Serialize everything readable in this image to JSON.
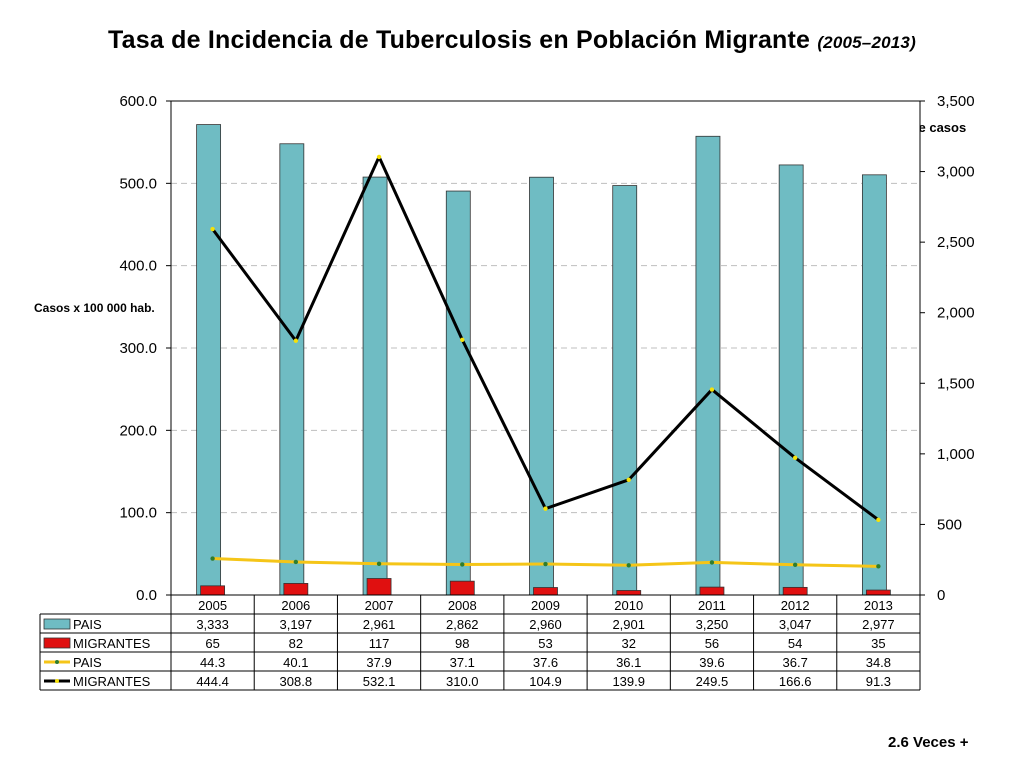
{
  "title": "Tasa de Incidencia de Tuberculosis en Población Migrante",
  "subtitle": "(2005–2013)",
  "note": "2.6 Veces +",
  "colors": {
    "pais_bar": "#6fbcc3",
    "migrantes_bar": "#e01010",
    "pais_line": "#f5c518",
    "migrantes_line": "#000000",
    "grid": "#bfbfbf"
  },
  "chart_data": {
    "type": "bar",
    "categories": [
      "2005",
      "2006",
      "2007",
      "2008",
      "2009",
      "2010",
      "2011",
      "2012",
      "2013"
    ],
    "ylabel": "Casos x 100 000 hab.",
    "ylabel_right": "No. de casos",
    "ylim": [
      0,
      600
    ],
    "ylim_right": [
      0,
      3500
    ],
    "yticks_left": [
      "0.0",
      "100.0",
      "200.0",
      "300.0",
      "400.0",
      "500.0",
      "600.0"
    ],
    "yticks_right": [
      "0",
      "500",
      "1,000",
      "1,500",
      "2,000",
      "2,500",
      "3,000",
      "3,500"
    ],
    "grid": true,
    "legend": "data table",
    "series": [
      {
        "name": "PAIS",
        "kind": "bar",
        "axis": "right",
        "color_key": "pais_bar",
        "values": [
          3333,
          3197,
          2961,
          2862,
          2960,
          2901,
          3250,
          3047,
          2977
        ],
        "labels": [
          "3,333",
          "3,197",
          "2,961",
          "2,862",
          "2,960",
          "2,901",
          "3,250",
          "3,047",
          "2,977"
        ]
      },
      {
        "name": "MIGRANTES",
        "kind": "bar",
        "axis": "right",
        "color_key": "migrantes_bar",
        "values": [
          65,
          82,
          117,
          98,
          53,
          32,
          56,
          54,
          35
        ],
        "labels": [
          "65",
          "82",
          "117",
          "98",
          "53",
          "32",
          "56",
          "54",
          "35"
        ]
      },
      {
        "name": "PAIS",
        "kind": "line",
        "axis": "left",
        "color_key": "pais_line",
        "values": [
          44.3,
          40.1,
          37.9,
          37.1,
          37.6,
          36.1,
          39.6,
          36.7,
          34.8
        ],
        "labels": [
          "44.3",
          "40.1",
          "37.9",
          "37.1",
          "37.6",
          "36.1",
          "39.6",
          "36.7",
          "34.8"
        ]
      },
      {
        "name": "MIGRANTES",
        "kind": "line",
        "axis": "left",
        "color_key": "migrantes_line",
        "values": [
          444.4,
          308.8,
          532.1,
          310.0,
          104.9,
          139.9,
          249.5,
          166.6,
          91.3
        ],
        "labels": [
          "444.4",
          "308.8",
          "532.1",
          "310.0",
          "104.9",
          "139.9",
          "249.5",
          "166.6",
          "91.3"
        ]
      }
    ]
  }
}
